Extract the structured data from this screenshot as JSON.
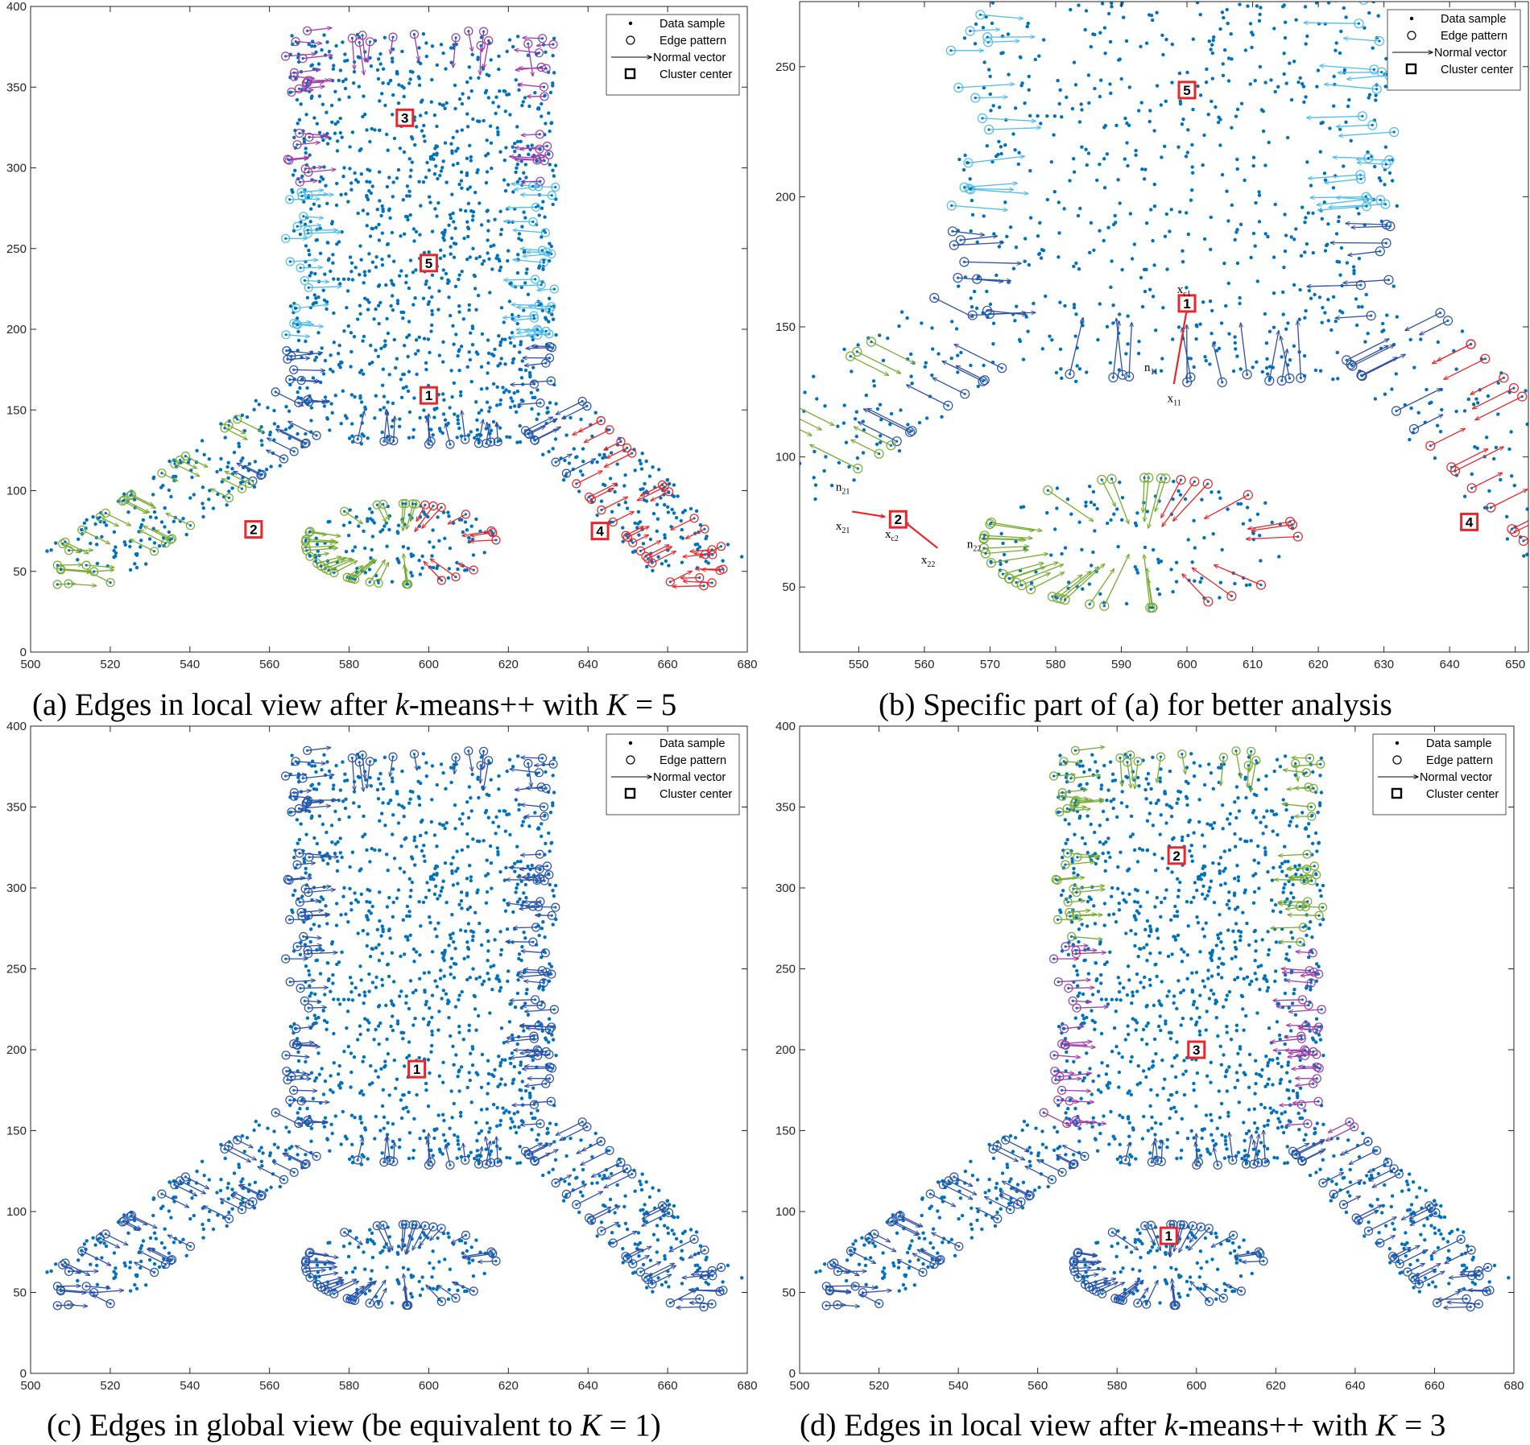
{
  "figure": {
    "captions": {
      "a": {
        "prefix": "(a) Edges in local view after ",
        "italic": "k",
        "suffix": "-means++ with ",
        "var": "K",
        "eq": " = 5"
      },
      "b": {
        "prefix": "(b) Specific part of (a) for better analysis",
        "italic": "",
        "suffix": "",
        "var": "",
        "eq": ""
      },
      "c": {
        "prefix": "(c) Edges in global view (be equivalent to ",
        "italic": "",
        "suffix": "",
        "var": "K",
        "eq": " = 1)"
      },
      "d": {
        "prefix": "(d) Edges in local view after ",
        "italic": "k",
        "suffix": "-means++ with ",
        "var": "K",
        "eq": " = 3"
      }
    },
    "legend": [
      "Data sample",
      "Edge pattern",
      "Normal vector",
      "Cluster center"
    ],
    "colors": {
      "sample": "#0072BD",
      "cluster_red": "#E8262B",
      "cluster_green": "#77AC30",
      "cluster_cyan": "#4DBEEE",
      "cluster_purple": "#A03CA8",
      "cluster_blue": "#2E4FA8",
      "center_red": "#E8262B"
    }
  },
  "chart_data": [
    {
      "id": "a",
      "type": "scatter",
      "title": "Edges in local view after k-means++ with K = 5",
      "xlim": [
        500,
        680
      ],
      "ylim": [
        0,
        400
      ],
      "xticks": [
        500,
        520,
        540,
        560,
        580,
        600,
        620,
        640,
        660,
        680
      ],
      "yticks": [
        0,
        50,
        100,
        150,
        200,
        250,
        300,
        350,
        400
      ],
      "legend_loc": "top-right",
      "centers": [
        {
          "label": "1",
          "x": 600,
          "y": 159
        },
        {
          "label": "2",
          "x": 556,
          "y": 76
        },
        {
          "label": "3",
          "x": 594,
          "y": 331
        },
        {
          "label": "4",
          "x": 643,
          "y": 75
        },
        {
          "label": "5",
          "x": 600,
          "y": 241
        }
      ],
      "cluster_scheme": "k5"
    },
    {
      "id": "b",
      "type": "scatter",
      "title": "Specific part of (a) for better analysis",
      "xlim": [
        541,
        652
      ],
      "ylim": [
        25,
        275
      ],
      "xticks": [
        550,
        560,
        570,
        580,
        590,
        600,
        610,
        620,
        630,
        640,
        650
      ],
      "yticks": [
        50,
        100,
        150,
        200,
        250
      ],
      "legend_loc": "top-right",
      "centers": [
        {
          "label": "1",
          "x": 600,
          "y": 159
        },
        {
          "label": "2",
          "x": 556,
          "y": 76
        },
        {
          "label": "4",
          "x": 643,
          "y": 75
        },
        {
          "label": "5",
          "x": 600,
          "y": 241
        }
      ],
      "annotations": [
        {
          "text": "x",
          "sub": "c1",
          "x": 598.5,
          "y": 163
        },
        {
          "text": "n",
          "sub": "11",
          "x": 593.5,
          "y": 133
        },
        {
          "text": "x",
          "sub": "11",
          "x": 597,
          "y": 121
        },
        {
          "text": "n",
          "sub": "21",
          "x": 546.5,
          "y": 87
        },
        {
          "text": "x",
          "sub": "21",
          "x": 546.5,
          "y": 72
        },
        {
          "text": "x",
          "sub": "c2",
          "x": 554,
          "y": 69
        },
        {
          "text": "n",
          "sub": "22",
          "x": 566.5,
          "y": 65
        },
        {
          "text": "x",
          "sub": "22",
          "x": 559.5,
          "y": 59
        }
      ],
      "cluster_scheme": "k5"
    },
    {
      "id": "c",
      "type": "scatter",
      "title": "Edges in global view (be equivalent to K = 1)",
      "xlim": [
        500,
        680
      ],
      "ylim": [
        0,
        400
      ],
      "xticks": [
        500,
        520,
        540,
        560,
        580,
        600,
        620,
        640,
        660,
        680
      ],
      "yticks": [
        0,
        50,
        100,
        150,
        200,
        250,
        300,
        350,
        400
      ],
      "legend_loc": "top-right",
      "centers": [
        {
          "label": "1",
          "x": 597,
          "y": 188
        }
      ],
      "cluster_scheme": "k1"
    },
    {
      "id": "d",
      "type": "scatter",
      "title": "Edges in local view after k-means++ with K = 3",
      "xlim": [
        500,
        680
      ],
      "ylim": [
        0,
        400
      ],
      "xticks": [
        500,
        520,
        540,
        560,
        580,
        600,
        620,
        640,
        660,
        680
      ],
      "yticks": [
        0,
        50,
        100,
        150,
        200,
        250,
        300,
        350,
        400
      ],
      "legend_loc": "top-right",
      "centers": [
        {
          "label": "1",
          "x": 593,
          "y": 85
        },
        {
          "label": "2",
          "x": 595,
          "y": 320
        },
        {
          "label": "3",
          "x": 600,
          "y": 200
        }
      ],
      "cluster_scheme": "k3"
    }
  ]
}
